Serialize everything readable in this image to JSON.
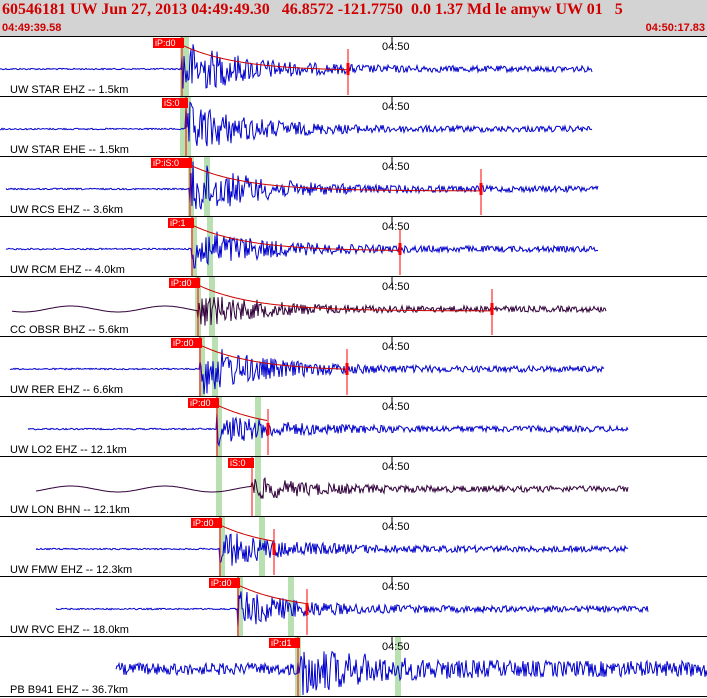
{
  "header": {
    "title": "60546181 UW Jun 27, 2013 04:49:49.30   46.8572 -121.7750  0.0 1.37 Md le amyw UW 01   5",
    "start_time": "04:49:39.58",
    "end_time": "04:50:17.83"
  },
  "colors": {
    "header_bg": "#d3d3d3",
    "header_text": "#d00000",
    "trace_blue": "#0000cc",
    "trace_dark": "#30003a",
    "pick_red": "#ff0000",
    "window_green": "#b8e0b0",
    "coda_red": "#cc0000"
  },
  "time_tick_label": "04:50",
  "traces": [
    {
      "label": "UW STAR EHZ -- 1.5km",
      "pick": "iP:d0",
      "color": "blue",
      "pick_t": 182,
      "start_t": 0,
      "end_t": 592,
      "amp": 1.0,
      "coda": true,
      "marker_t": 348,
      "green": [
        181,
        186
      ]
    },
    {
      "label": "UW STAR EHE -- 1.5km",
      "pick": "iS:0",
      "color": "blue",
      "pick_t": 186,
      "start_t": 0,
      "end_t": 592,
      "amp": 0.9,
      "coda": false,
      "marker_t": null,
      "green": [
        181,
        188
      ]
    },
    {
      "label": "UW RCS EHZ -- 3.6km",
      "pick": "iP:iS:0",
      "color": "blue",
      "pick_t": 190,
      "start_t": 6,
      "end_t": 598,
      "amp": 1.0,
      "coda": true,
      "marker_t": 481,
      "green": [
        189,
        207
      ]
    },
    {
      "label": "UW RCM EHZ -- 4.0km",
      "pick": "iP:1",
      "color": "blue",
      "pick_t": 192,
      "start_t": 6,
      "end_t": 598,
      "amp": 0.8,
      "coda": true,
      "marker_t": 400,
      "green": [
        192,
        210
      ]
    },
    {
      "label": "CC OBSR BHZ -- 5.6km",
      "pick": "iP:d0",
      "color": "dark",
      "pick_t": 198,
      "start_t": 12,
      "end_t": 606,
      "amp": 0.6,
      "coda": true,
      "marker_t": 492,
      "green": [
        196,
        212
      ]
    },
    {
      "label": "UW RER EHZ -- 6.6km",
      "pick": "iP:d0",
      "color": "blue",
      "pick_t": 200,
      "start_t": 10,
      "end_t": 604,
      "amp": 0.9,
      "coda": true,
      "marker_t": 347,
      "green": [
        200,
        215
      ]
    },
    {
      "label": "UW LO2 EHZ -- 12.1km",
      "pick": "iP:d0",
      "color": "blue",
      "pick_t": 217,
      "start_t": 28,
      "end_t": 628,
      "amp": 0.5,
      "coda": true,
      "marker_t": 268,
      "green": [
        217,
        258
      ]
    },
    {
      "label": "UW LON BHN -- 12.1km",
      "pick": "iS:0",
      "color": "dark",
      "pick_t": 252,
      "start_t": 36,
      "end_t": 628,
      "amp": 0.35,
      "coda": false,
      "marker_t": null,
      "green": [
        217,
        258
      ]
    },
    {
      "label": "UW FMW EHZ -- 12.3km",
      "pick": "iP:d0",
      "color": "blue",
      "pick_t": 220,
      "start_t": 36,
      "end_t": 628,
      "amp": 0.6,
      "coda": true,
      "marker_t": 274,
      "green": [
        220,
        262
      ]
    },
    {
      "label": "UW RVC EHZ -- 18.0km",
      "pick": "iP:d0",
      "color": "blue",
      "pick_t": 238,
      "start_t": 56,
      "end_t": 648,
      "amp": 0.6,
      "coda": true,
      "marker_t": 307,
      "green": [
        238,
        291
      ]
    },
    {
      "label": "PB B941 EHZ -- 36.7km",
      "pick": "iP:d1",
      "color": "blue",
      "pick_t": 298,
      "start_t": 116,
      "end_t": 707,
      "amp": 0.8,
      "coda": false,
      "marker_t": null,
      "green": [
        296,
        398
      ]
    }
  ]
}
